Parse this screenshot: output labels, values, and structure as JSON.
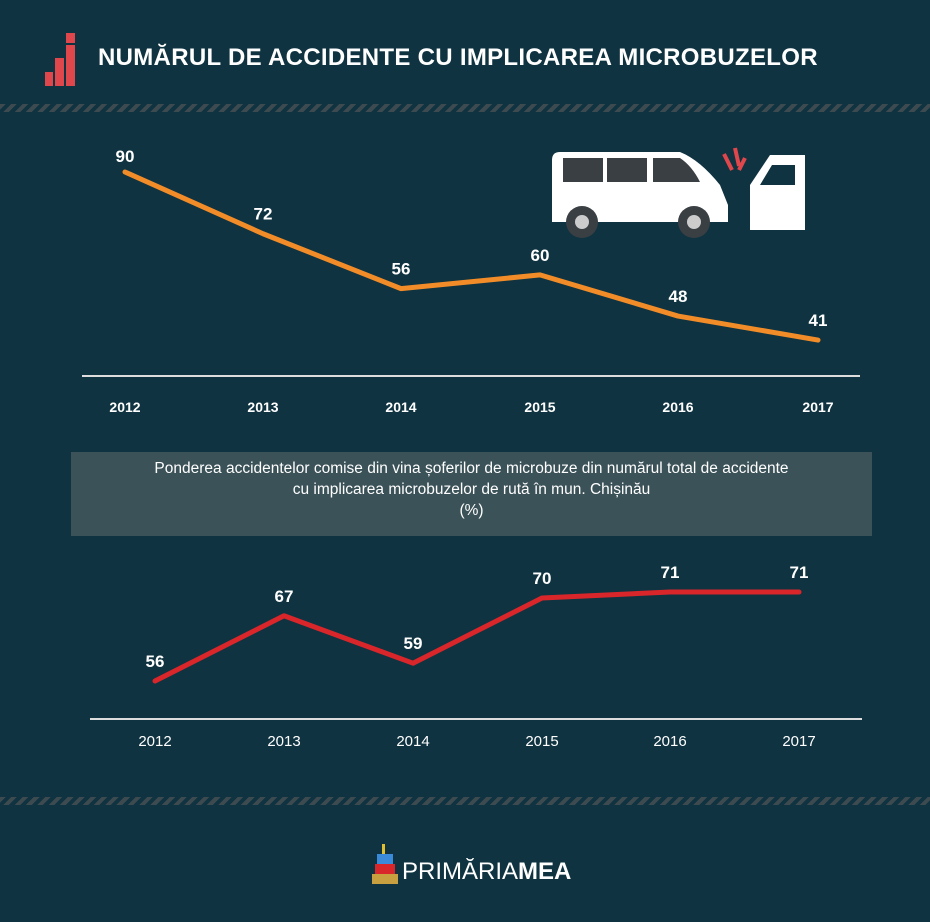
{
  "title": "NUMĂRUL DE ACCIDENTE CU IMPLICAREA MICROBUZELOR",
  "subtitle": {
    "line1": "Ponderea accidentelor comise din vina șoferilor de microbuze din numărul total de accidente",
    "line2": "cu implicarea microbuzelor de rută în mun. Chișinău",
    "line3": "(%)"
  },
  "logo": {
    "part1": "PRIMĂRIA",
    "part2": "MEA"
  },
  "colors": {
    "bg": "#0f3340",
    "orange": "#f28c28",
    "red": "#d9262b"
  },
  "chart_data": [
    {
      "type": "line",
      "title": "NUMĂRUL DE ACCIDENTE CU IMPLICAREA MICROBUZELOR",
      "categories": [
        "2012",
        "2013",
        "2014",
        "2015",
        "2016",
        "2017"
      ],
      "values": [
        90,
        72,
        56,
        60,
        48,
        41
      ],
      "color": "#f28c28"
    },
    {
      "type": "line",
      "title": "Ponderea accidentelor comise din vina șoferilor de microbuze (%)",
      "categories": [
        "2012",
        "2013",
        "2014",
        "2015",
        "2016",
        "2017"
      ],
      "values": [
        56,
        67,
        59,
        70,
        71,
        71
      ],
      "color": "#d9262b"
    }
  ]
}
